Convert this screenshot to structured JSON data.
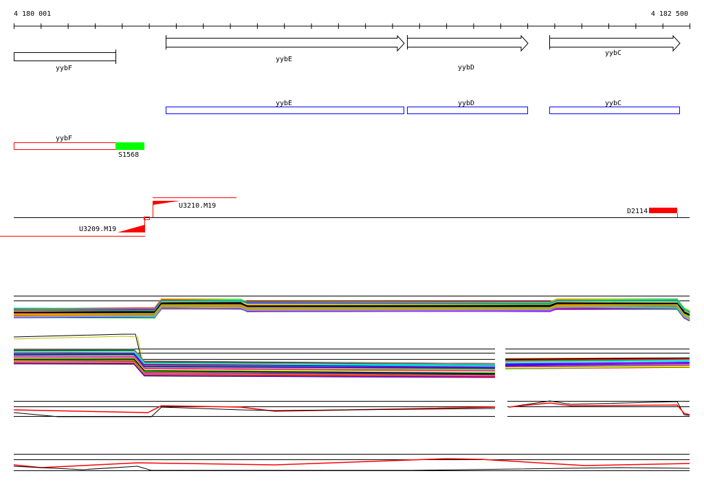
{
  "ruler": {
    "start_label": "4 180 001",
    "end_label": "4 182 500",
    "tick_count": 25
  },
  "genes": [
    {
      "name": "yybF",
      "strand": "-"
    },
    {
      "name": "yybE",
      "strand": "+"
    },
    {
      "name": "yybD",
      "strand": "+"
    },
    {
      "name": "yybC",
      "strand": "+"
    }
  ],
  "cds_track": [
    {
      "name": "yybE"
    },
    {
      "name": "yybD"
    },
    {
      "name": "yybC"
    }
  ],
  "cds_color": "#0000ff",
  "region_track": {
    "gene_label": "yybF",
    "feature_label": "S1568",
    "gene_color": "#ff0000",
    "feature_color": "#00ff00"
  },
  "transcription_units": [
    {
      "label": "U3209.M19"
    },
    {
      "label": "U3210.M19"
    },
    {
      "label": "D2114"
    }
  ],
  "accent_color": "#ff0000"
}
